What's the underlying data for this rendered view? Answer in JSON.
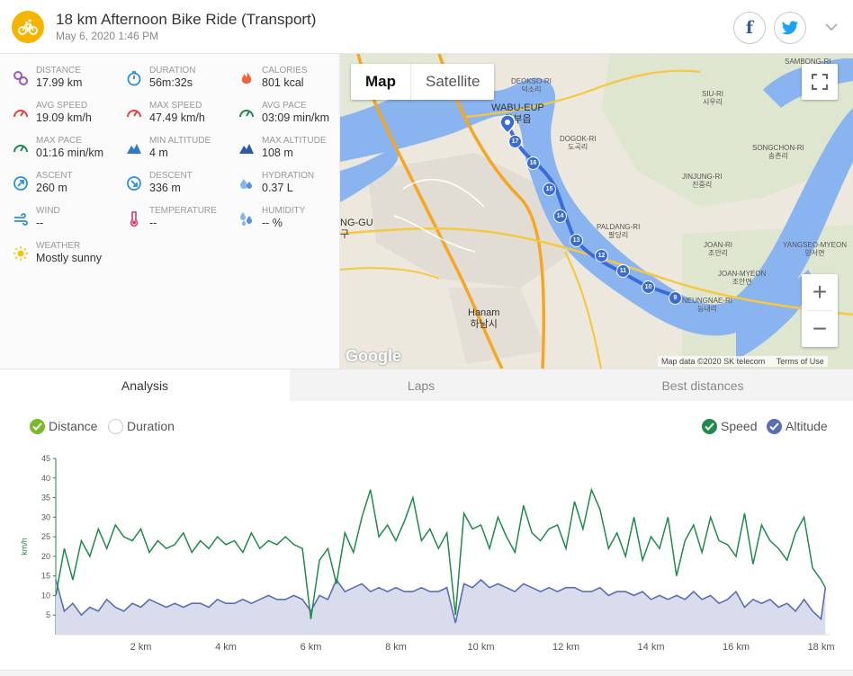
{
  "header": {
    "title": "18 km Afternoon Bike Ride (Transport)",
    "date": "May 6, 2020 1:46 PM",
    "sport_icon": "bike-icon",
    "accent": "#f5b400"
  },
  "social": {
    "facebook_label": "f",
    "facebook_color": "#3b5998",
    "twitter_color": "#1da1f2"
  },
  "stats": [
    {
      "id": "distance",
      "label": "Distance",
      "value": "17.99 km",
      "icon": "location-pin-icon"
    },
    {
      "id": "duration",
      "label": "Duration",
      "value": "56m:32s",
      "icon": "stopwatch-icon"
    },
    {
      "id": "calories",
      "label": "Calories",
      "value": "801 kcal",
      "icon": "flame-icon"
    },
    {
      "id": "avg-speed",
      "label": "Avg speed",
      "value": "19.09 km/h",
      "icon": "speedometer-icon"
    },
    {
      "id": "max-speed",
      "label": "Max speed",
      "value": "47.49 km/h",
      "icon": "speedometer-icon"
    },
    {
      "id": "avg-pace",
      "label": "Avg pace",
      "value": "03:09 min/km",
      "icon": "speedometer-icon"
    },
    {
      "id": "max-pace",
      "label": "Max pace",
      "value": "01:16 min/km",
      "icon": "speedometer-icon"
    },
    {
      "id": "min-altitude",
      "label": "Min altitude",
      "value": "4 m",
      "icon": "mountain-icon"
    },
    {
      "id": "max-altitude",
      "label": "Max altitude",
      "value": "108 m",
      "icon": "mountain-icon"
    },
    {
      "id": "ascent",
      "label": "Ascent",
      "value": "260 m",
      "icon": "ascent-icon"
    },
    {
      "id": "descent",
      "label": "Descent",
      "value": "336 m",
      "icon": "descent-icon"
    },
    {
      "id": "hydration",
      "label": "Hydration",
      "value": "0.37 L",
      "icon": "water-drops-icon"
    },
    {
      "id": "wind",
      "label": "Wind",
      "value": "--",
      "icon": "wind-icon"
    },
    {
      "id": "temperature",
      "label": "Temperature",
      "value": "--",
      "icon": "thermometer-icon"
    },
    {
      "id": "humidity",
      "label": "Humidity",
      "value": "-- %",
      "icon": "humidity-icon"
    },
    {
      "id": "weather",
      "label": "Weather",
      "value": "Mostly sunny",
      "icon": "sun-icon"
    }
  ],
  "map": {
    "type_buttons": [
      "Map",
      "Satellite"
    ],
    "selected_type": "Map",
    "zoom_in": "+",
    "zoom_out": "−",
    "logo": "Google",
    "attribution": "Map data ©2020 SK telecom",
    "terms": "Terms of Use",
    "places": [
      {
        "id": "deokso",
        "lines": [
          "DEOKSO-RI",
          "덕소리"
        ]
      },
      {
        "id": "wabu",
        "lines": [
          "WABU-EUP",
          "와부읍"
        ]
      },
      {
        "id": "dogok",
        "lines": [
          "DOGOK-RI",
          "도곡리"
        ]
      },
      {
        "id": "paldang",
        "lines": [
          "PALDANG-RI",
          "팔당리"
        ]
      },
      {
        "id": "siu",
        "lines": [
          "SIU-RI",
          "시우리"
        ]
      },
      {
        "id": "songchon",
        "lines": [
          "SONGCHON-RI",
          "송촌리"
        ]
      },
      {
        "id": "jinjung",
        "lines": [
          "JINJUNG-RI",
          "진중리"
        ]
      },
      {
        "id": "joan",
        "lines": [
          "JOAN-RI",
          "조안리"
        ]
      },
      {
        "id": "yangseo",
        "lines": [
          "YANGSEO-MYEON",
          "양서면"
        ]
      },
      {
        "id": "joan-myeon",
        "lines": [
          "JOAN-MYEON",
          "조안면"
        ]
      },
      {
        "id": "neungnae",
        "lines": [
          "NEUNGNAE-RI",
          "능내리"
        ]
      },
      {
        "id": "samsong",
        "lines": [
          "SAMBONG-RI"
        ]
      },
      {
        "id": "ng-gu",
        "lines": [
          "NG-GU",
          "구"
        ]
      },
      {
        "id": "hanam",
        "lines": [
          "Hanam",
          "하남시"
        ]
      }
    ],
    "markers": [
      "17",
      "16",
      "15",
      "14",
      "13",
      "12",
      "11",
      "10",
      "9"
    ]
  },
  "tabs": [
    "Analysis",
    "Laps",
    "Best distances"
  ],
  "active_tab": "Analysis",
  "chart_toggles": {
    "distance": "Distance",
    "duration": "Duration",
    "speed": "Speed",
    "altitude": "Altitude"
  },
  "chart_data": {
    "type": "line",
    "xlabel": "",
    "ylabel": "km/h",
    "xlim": [
      0,
      18.2
    ],
    "ylim": [
      0,
      45
    ],
    "x_ticks": [
      "2 km",
      "4 km",
      "6 km",
      "8 km",
      "10 km",
      "12 km",
      "14 km",
      "16 km",
      "18 km"
    ],
    "x_tick_values": [
      2,
      4,
      6,
      8,
      10,
      12,
      14,
      16,
      18
    ],
    "y_ticks": [
      5,
      10,
      15,
      20,
      25,
      30,
      35,
      40,
      45
    ],
    "series": [
      {
        "name": "Speed",
        "color": "#1f8a4c",
        "x": [
          0.0,
          0.2,
          0.4,
          0.6,
          0.8,
          1.0,
          1.2,
          1.4,
          1.6,
          1.8,
          2.0,
          2.2,
          2.4,
          2.6,
          2.8,
          3.0,
          3.2,
          3.4,
          3.6,
          3.8,
          4.0,
          4.2,
          4.4,
          4.6,
          4.8,
          5.0,
          5.2,
          5.4,
          5.6,
          5.8,
          6.0,
          6.2,
          6.4,
          6.6,
          6.8,
          7.0,
          7.2,
          7.4,
          7.6,
          7.8,
          8.0,
          8.2,
          8.4,
          8.6,
          8.8,
          9.0,
          9.2,
          9.4,
          9.6,
          9.8,
          10.0,
          10.2,
          10.4,
          10.6,
          10.8,
          11.0,
          11.2,
          11.4,
          11.6,
          11.8,
          12.0,
          12.2,
          12.4,
          12.6,
          12.8,
          13.0,
          13.2,
          13.4,
          13.6,
          13.8,
          14.0,
          14.2,
          14.4,
          14.6,
          14.8,
          15.0,
          15.2,
          15.4,
          15.6,
          15.8,
          16.0,
          16.2,
          16.4,
          16.6,
          16.8,
          17.0,
          17.2,
          17.4,
          17.6,
          17.8,
          18.0,
          18.1
        ],
        "values": [
          10,
          22,
          14,
          24,
          20,
          27,
          22,
          28,
          25,
          24,
          27,
          21,
          24,
          22,
          23,
          26,
          21,
          24,
          22,
          25,
          23,
          24,
          21,
          26,
          22,
          24,
          23,
          25,
          23,
          22,
          4,
          19,
          22,
          13,
          26,
          21,
          30,
          37,
          25,
          28,
          24,
          29,
          35,
          24,
          27,
          22,
          26,
          5,
          31,
          27,
          28,
          22,
          30,
          25,
          21,
          33,
          26,
          24,
          27,
          28,
          22,
          34,
          27,
          37,
          32,
          22,
          26,
          20,
          30,
          19,
          25,
          22,
          30,
          15,
          24,
          28,
          21,
          30,
          24,
          23,
          20,
          31,
          18,
          28,
          24,
          22,
          19,
          26,
          30,
          17,
          14,
          12
        ]
      },
      {
        "name": "Altitude",
        "color": "#5b6eb0",
        "x": [
          0.0,
          0.2,
          0.4,
          0.6,
          0.8,
          1.0,
          1.2,
          1.4,
          1.6,
          1.8,
          2.0,
          2.2,
          2.4,
          2.6,
          2.8,
          3.0,
          3.2,
          3.4,
          3.6,
          3.8,
          4.0,
          4.2,
          4.4,
          4.6,
          4.8,
          5.0,
          5.2,
          5.4,
          5.6,
          5.8,
          6.0,
          6.2,
          6.4,
          6.6,
          6.8,
          7.0,
          7.2,
          7.4,
          7.6,
          7.8,
          8.0,
          8.2,
          8.4,
          8.6,
          8.8,
          9.0,
          9.2,
          9.4,
          9.6,
          9.8,
          10.0,
          10.2,
          10.4,
          10.6,
          10.8,
          11.0,
          11.2,
          11.4,
          11.6,
          11.8,
          12.0,
          12.2,
          12.4,
          12.6,
          12.8,
          13.0,
          13.2,
          13.4,
          13.6,
          13.8,
          14.0,
          14.2,
          14.4,
          14.6,
          14.8,
          15.0,
          15.2,
          15.4,
          15.6,
          15.8,
          16.0,
          16.2,
          16.4,
          16.6,
          16.8,
          17.0,
          17.2,
          17.4,
          17.6,
          17.8,
          18.0,
          18.1
        ],
        "values": [
          14,
          6,
          8,
          5,
          7,
          6,
          9,
          7,
          6,
          8,
          7,
          9,
          8,
          7,
          8,
          7,
          8,
          8,
          7,
          9,
          8,
          8,
          9,
          8,
          9,
          10,
          9,
          9,
          10,
          9,
          6,
          10,
          9,
          14,
          11,
          12,
          13,
          11,
          12,
          11,
          12,
          11,
          11,
          12,
          11,
          11,
          12,
          3,
          13,
          12,
          14,
          12,
          13,
          12,
          11,
          13,
          12,
          11,
          12,
          11,
          12,
          12,
          11,
          11,
          12,
          10,
          11,
          11,
          10,
          11,
          9,
          10,
          9,
          10,
          9,
          11,
          9,
          10,
          8,
          9,
          11,
          7,
          9,
          8,
          9,
          7,
          8,
          6,
          9,
          6,
          4,
          12
        ]
      }
    ]
  }
}
